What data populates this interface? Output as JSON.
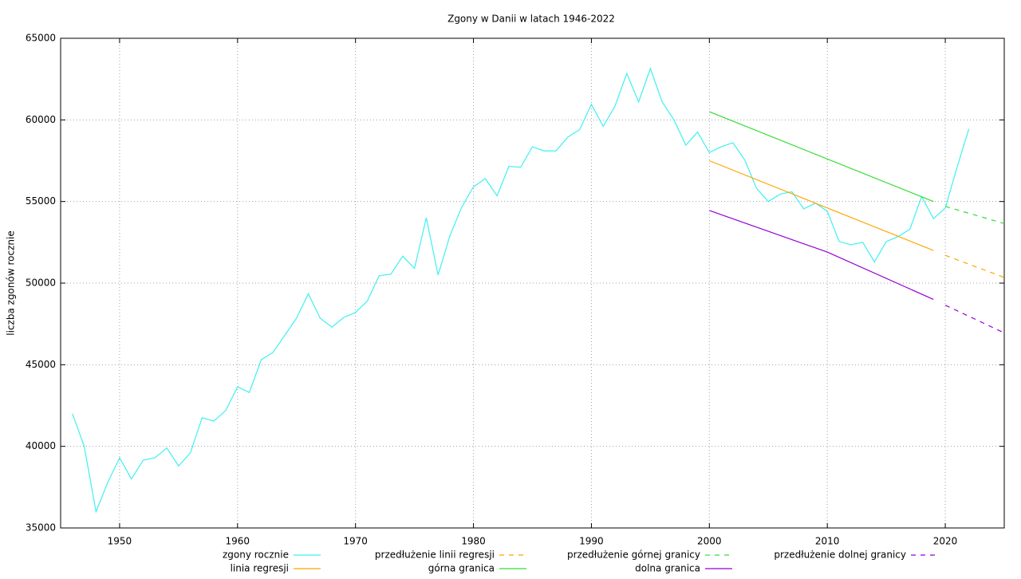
{
  "chart_data": {
    "type": "line",
    "title": "Zgony w Danii w latach 1946-2022",
    "ylabel": "liczba zgonów rocznie",
    "xlim": [
      1945,
      2025
    ],
    "ylim": [
      35000,
      65000
    ],
    "xticks": [
      1950,
      1960,
      1970,
      1980,
      1990,
      2000,
      2010,
      2020
    ],
    "yticks": [
      35000,
      40000,
      45000,
      50000,
      55000,
      60000,
      65000
    ],
    "grid": true,
    "legend": "bottom",
    "series": [
      {
        "name": "zgony rocznie",
        "color": "#3ff0f0",
        "dash": false,
        "x": [
          1946,
          1947,
          1948,
          1949,
          1950,
          1951,
          1952,
          1953,
          1954,
          1955,
          1956,
          1957,
          1958,
          1959,
          1960,
          1961,
          1962,
          1963,
          1964,
          1965,
          1966,
          1967,
          1968,
          1969,
          1970,
          1971,
          1972,
          1973,
          1974,
          1975,
          1976,
          1977,
          1978,
          1979,
          1980,
          1981,
          1982,
          1983,
          1984,
          1985,
          1986,
          1987,
          1988,
          1989,
          1990,
          1991,
          1992,
          1993,
          1994,
          1995,
          1996,
          1997,
          1998,
          1999,
          2000,
          2001,
          2002,
          2003,
          2004,
          2005,
          2006,
          2007,
          2008,
          2009,
          2010,
          2011,
          2012,
          2013,
          2014,
          2015,
          2016,
          2017,
          2018,
          2019,
          2020,
          2021,
          2022
        ],
        "values": [
          42000,
          40000,
          36000,
          37800,
          39300,
          38000,
          39150,
          39300,
          39900,
          38800,
          39600,
          41750,
          41550,
          42200,
          43650,
          43300,
          45300,
          45750,
          46800,
          47850,
          49350,
          47850,
          47300,
          47900,
          48200,
          48900,
          50450,
          50550,
          51650,
          50900,
          54000,
          50500,
          52900,
          54650,
          55900,
          56400,
          55350,
          57150,
          57100,
          58350,
          58100,
          58100,
          58950,
          59400,
          60950,
          59600,
          60850,
          62850,
          61100,
          63150,
          61100,
          60000,
          58450,
          59250,
          58000,
          58350,
          58600,
          57550,
          55800,
          55000,
          55450,
          55600,
          54550,
          54900,
          54400,
          52550,
          52350,
          52500,
          51300,
          52550,
          52850,
          53300,
          55300,
          53950,
          54600,
          57100,
          59450
        ]
      },
      {
        "name": "linia regresji",
        "color": "#ffa500",
        "dash": false,
        "x": [
          2000,
          2019
        ],
        "values": [
          57500,
          52000
        ]
      },
      {
        "name": "przedłużenie linii regresji",
        "color": "#ffa500",
        "dash": true,
        "x": [
          2020,
          2025
        ],
        "values": [
          51700,
          50350
        ]
      },
      {
        "name": "górna granica",
        "color": "#33dd33",
        "dash": false,
        "x": [
          2000,
          2019
        ],
        "values": [
          60500,
          55000
        ]
      },
      {
        "name": "przedłużenie górnej granicy",
        "color": "#33dd33",
        "dash": true,
        "x": [
          2020,
          2025
        ],
        "values": [
          54700,
          53650
        ]
      },
      {
        "name": "dolna granica",
        "color": "#9400d3",
        "dash": false,
        "x": [
          2000,
          2010,
          2019
        ],
        "values": [
          54450,
          51900,
          49000
        ]
      },
      {
        "name": "przedłużenie dolnej granicy",
        "color": "#9400d3",
        "dash": true,
        "x": [
          2020,
          2025
        ],
        "values": [
          48650,
          46950
        ]
      }
    ]
  }
}
